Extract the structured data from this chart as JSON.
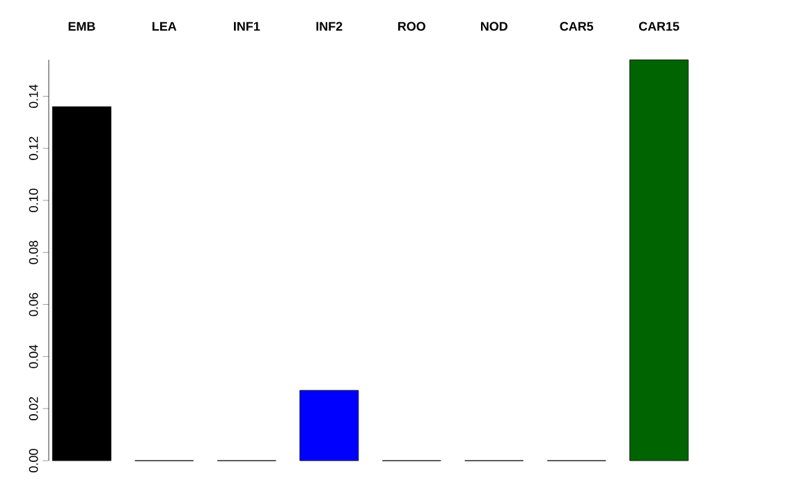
{
  "chart_data": {
    "type": "bar",
    "categories": [
      "EMB",
      "LEA",
      "INF1",
      "INF2",
      "ROO",
      "NOD",
      "CAR5",
      "CAR15"
    ],
    "values": [
      0.136,
      0,
      0,
      0.027,
      0,
      0,
      0,
      0.154
    ],
    "colors": [
      "#000000",
      "#000000",
      "#000000",
      "#0000ff",
      "#000000",
      "#000000",
      "#000000",
      "#006400"
    ],
    "ylim": [
      0,
      0.154
    ],
    "yticks": [
      {
        "value": 0,
        "label": "0.00"
      },
      {
        "value": 0.02,
        "label": "0.02"
      },
      {
        "value": 0.04,
        "label": "0.04"
      },
      {
        "value": 0.06,
        "label": "0.06"
      },
      {
        "value": 0.08,
        "label": "0.08"
      },
      {
        "value": 0.1,
        "label": "0.10"
      },
      {
        "value": 0.12,
        "label": "0.12"
      },
      {
        "value": 0.14,
        "label": "0.14"
      }
    ],
    "grid": false
  }
}
